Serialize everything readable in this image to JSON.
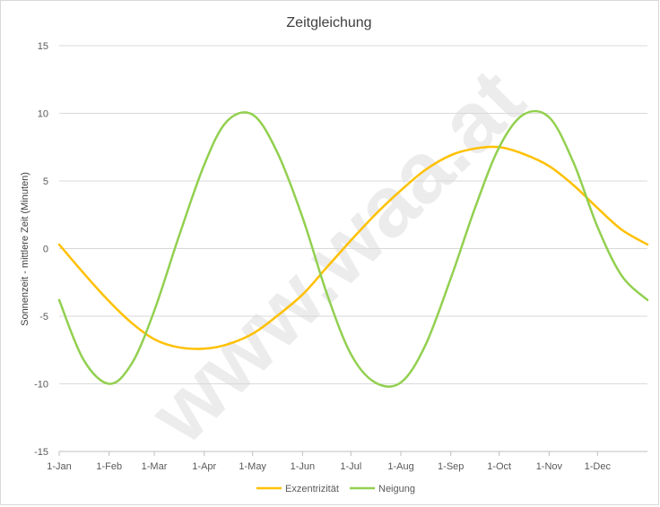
{
  "chart_data": {
    "type": "line",
    "title": "Zeitgleichung",
    "ylabel": "Sonnenzeit - mittlere Zeit (Minuten)",
    "xlabel": "",
    "watermark": "www.waa.at",
    "ylim": [
      -15,
      15
    ],
    "yticks": [
      15,
      10,
      5,
      0,
      -5,
      -10,
      -15
    ],
    "xlim": [
      1,
      366
    ],
    "xticks": [
      {
        "label": "1-Jan",
        "day": 1
      },
      {
        "label": "1-Feb",
        "day": 32
      },
      {
        "label": "1-Mar",
        "day": 60
      },
      {
        "label": "1-Apr",
        "day": 91
      },
      {
        "label": "1-May",
        "day": 121
      },
      {
        "label": "1-Jun",
        "day": 152
      },
      {
        "label": "1-Jul",
        "day": 182
      },
      {
        "label": "1-Aug",
        "day": 213
      },
      {
        "label": "1-Sep",
        "day": 244
      },
      {
        "label": "1-Oct",
        "day": 274
      },
      {
        "label": "1-Nov",
        "day": 305
      },
      {
        "label": "1-Dec",
        "day": 335
      }
    ],
    "grid": "horizontal",
    "legend_position": "bottom",
    "series": [
      {
        "name": "Exzentrizität",
        "color": "#FFC000",
        "points": [
          [
            1,
            0.3
          ],
          [
            16,
            -1.8
          ],
          [
            32,
            -3.9
          ],
          [
            46,
            -5.5
          ],
          [
            60,
            -6.7
          ],
          [
            75,
            -7.3
          ],
          [
            91,
            -7.4
          ],
          [
            105,
            -7.1
          ],
          [
            121,
            -6.3
          ],
          [
            136,
            -5.0
          ],
          [
            152,
            -3.4
          ],
          [
            167,
            -1.4
          ],
          [
            182,
            0.6
          ],
          [
            197,
            2.5
          ],
          [
            213,
            4.3
          ],
          [
            228,
            5.8
          ],
          [
            244,
            6.9
          ],
          [
            259,
            7.4
          ],
          [
            274,
            7.5
          ],
          [
            289,
            7.0
          ],
          [
            305,
            6.1
          ],
          [
            320,
            4.7
          ],
          [
            335,
            3.0
          ],
          [
            350,
            1.4
          ],
          [
            366,
            0.3
          ]
        ]
      },
      {
        "name": "Neigung",
        "color": "#92D050",
        "points": [
          [
            1,
            -3.8
          ],
          [
            16,
            -8.2
          ],
          [
            32,
            -10.0
          ],
          [
            46,
            -8.5
          ],
          [
            60,
            -4.6
          ],
          [
            75,
            0.8
          ],
          [
            91,
            6.2
          ],
          [
            105,
            9.4
          ],
          [
            121,
            9.9
          ],
          [
            136,
            7.2
          ],
          [
            152,
            2.3
          ],
          [
            167,
            -3.3
          ],
          [
            182,
            -7.8
          ],
          [
            197,
            -9.9
          ],
          [
            213,
            -9.9
          ],
          [
            228,
            -7.2
          ],
          [
            244,
            -2.2
          ],
          [
            259,
            3.0
          ],
          [
            274,
            7.5
          ],
          [
            289,
            9.9
          ],
          [
            305,
            9.7
          ],
          [
            320,
            6.4
          ],
          [
            335,
            1.6
          ],
          [
            350,
            -2.0
          ],
          [
            366,
            -3.8
          ]
        ]
      }
    ]
  }
}
